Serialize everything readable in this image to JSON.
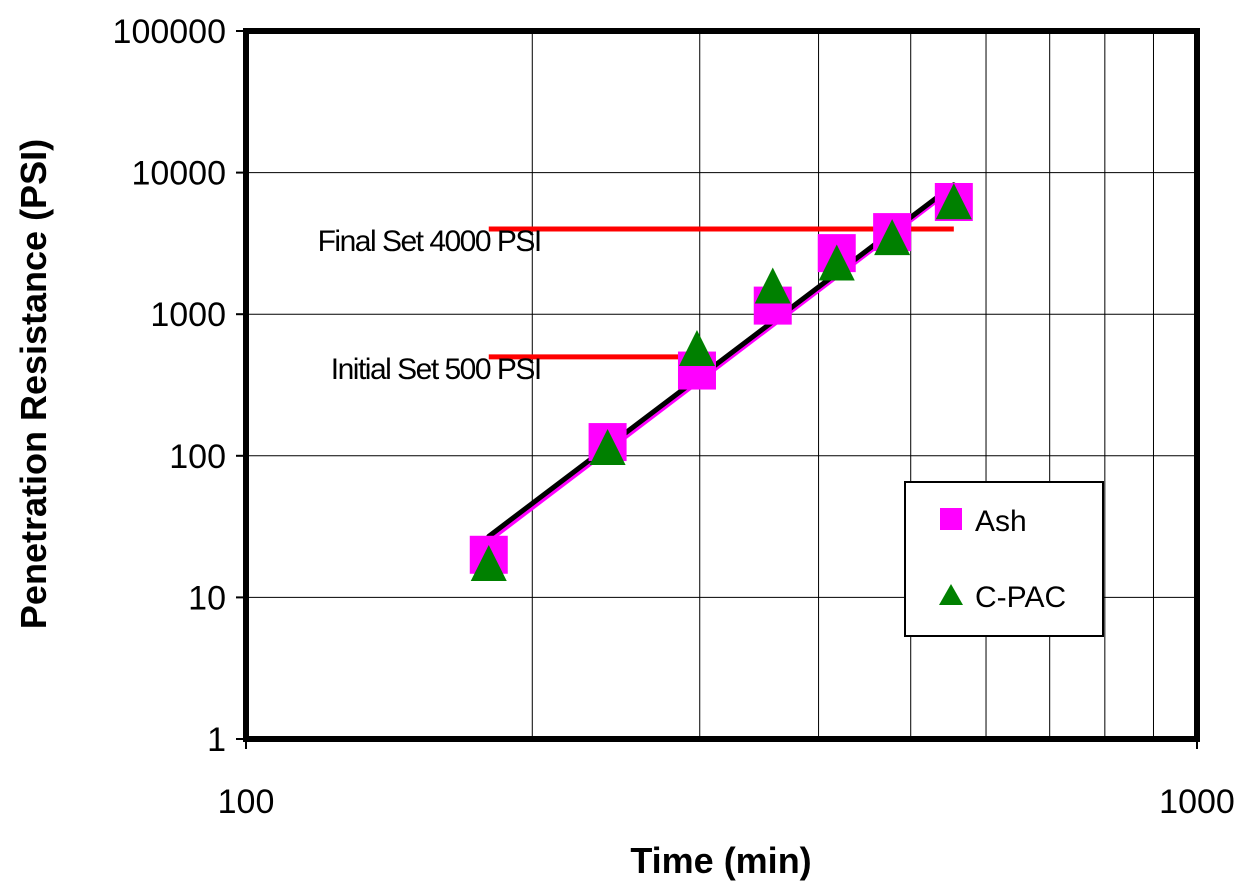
{
  "chart_data": {
    "type": "scatter",
    "xlabel": "Time (min)",
    "ylabel": "Penetration Resistance (PSI)",
    "x_scale": "log",
    "y_scale": "log",
    "xlim": [
      100,
      1000
    ],
    "ylim": [
      1,
      100000
    ],
    "x_ticks": [
      100,
      1000
    ],
    "y_ticks": [
      1,
      10,
      100,
      1000,
      10000,
      100000
    ],
    "x_tick_labels": [
      "100",
      "1000"
    ],
    "y_tick_labels": [
      "1",
      "10",
      "100",
      "1000",
      "10000",
      "100000"
    ],
    "grid": true,
    "legend_position": "right",
    "series": [
      {
        "name": "Ash",
        "marker": "square",
        "color": "#FF00FF",
        "x": [
          180,
          240,
          298,
          358,
          418,
          478,
          555
        ],
        "y": [
          20,
          125,
          400,
          1150,
          2700,
          3800,
          6200
        ]
      },
      {
        "name": "C-PAC",
        "marker": "triangle",
        "color": "#008000",
        "x": [
          180,
          240,
          298,
          358,
          418,
          478,
          555
        ],
        "y": [
          17,
          112,
          560,
          1550,
          2250,
          3400,
          6100
        ]
      }
    ],
    "fit_lines": [
      {
        "color": "#000000",
        "x": [
          180,
          555
        ],
        "y": [
          27,
          8200
        ]
      },
      {
        "color": "#FF00FF",
        "x": [
          180,
          555
        ],
        "y": [
          25,
          7800
        ]
      }
    ],
    "reference_lines": [
      {
        "label": "Initial Set 500 PSI",
        "y": 500,
        "x_start": 180,
        "x_end": 298,
        "color": "#FF0000"
      },
      {
        "label": "Final Set 4000 PSI",
        "y": 4000,
        "x_start": 180,
        "x_end": 555,
        "color": "#FF0000"
      }
    ]
  }
}
